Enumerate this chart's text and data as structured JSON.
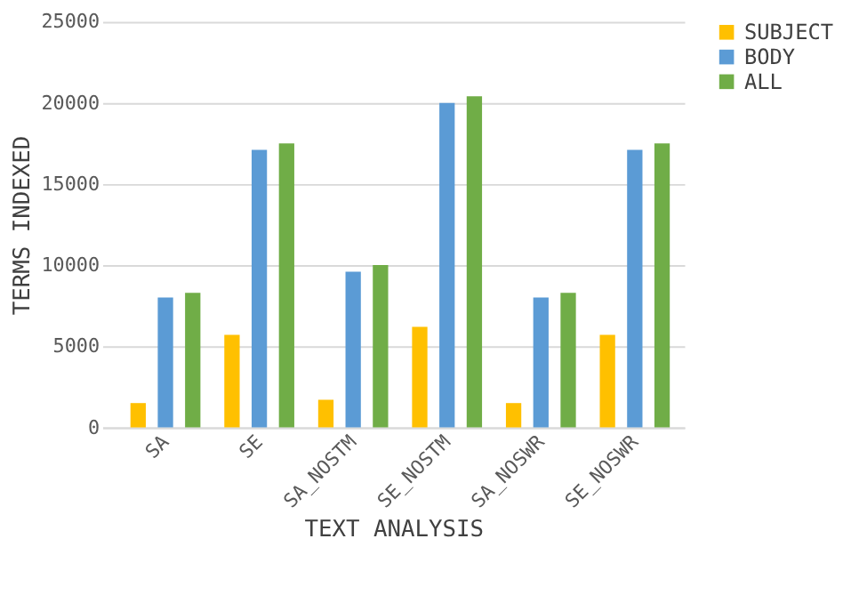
{
  "chart_data": {
    "type": "bar",
    "xlabel": "TEXT ANALYSIS",
    "ylabel": "TERMS INDEXED",
    "categories": [
      "SA",
      "SE",
      "SA_NOSTM",
      "SE_NOSTM",
      "SA_NOSWR",
      "SE_NOSWR"
    ],
    "series": [
      {
        "name": "SUBJECT",
        "color": "#ffc000",
        "values": [
          1500,
          5700,
          1700,
          6200,
          1500,
          5700
        ]
      },
      {
        "name": "BODY",
        "color": "#5b9bd5",
        "values": [
          8000,
          17100,
          9600,
          20000,
          8000,
          17100
        ]
      },
      {
        "name": "ALL",
        "color": "#70ad47",
        "values": [
          8300,
          17500,
          10000,
          20400,
          8300,
          17500
        ]
      }
    ],
    "ylim": [
      0,
      25000
    ],
    "yticks": [
      0,
      5000,
      10000,
      15000,
      20000,
      25000
    ],
    "grid": "y",
    "legend": "right"
  }
}
